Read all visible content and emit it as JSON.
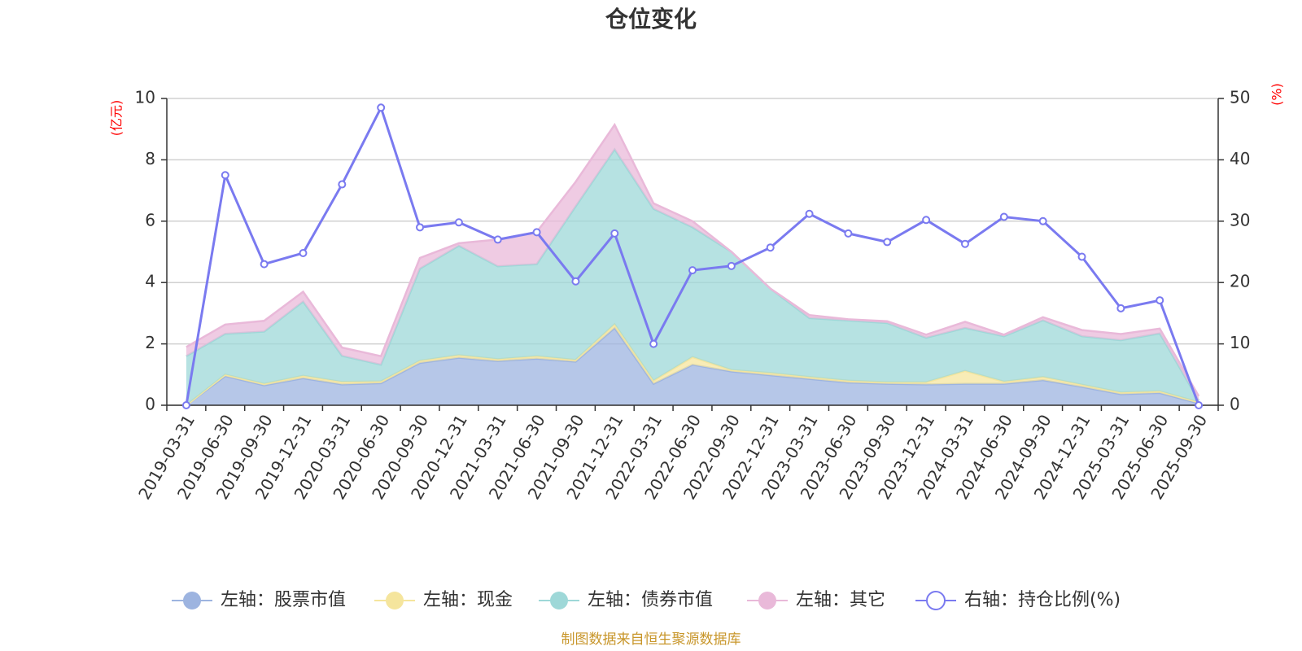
{
  "chart_data": {
    "type": "area",
    "title": "仓位变化",
    "left_axis_label": "(亿元)",
    "right_axis_label": "(%)",
    "left_ylim": [
      0,
      10
    ],
    "left_ticks": [
      0,
      2,
      4,
      6,
      8,
      10
    ],
    "right_ylim": [
      0,
      50
    ],
    "right_ticks": [
      0,
      10,
      20,
      30,
      40,
      50
    ],
    "categories": [
      "2019-03-31",
      "2019-06-30",
      "2019-09-30",
      "2019-12-31",
      "2020-03-31",
      "2020-06-30",
      "2020-09-30",
      "2020-12-31",
      "2021-03-31",
      "2021-06-30",
      "2021-09-30",
      "2021-12-31",
      "2022-03-31",
      "2022-06-30",
      "2022-09-30",
      "2022-12-31",
      "2023-03-31",
      "2023-06-30",
      "2023-09-30",
      "2023-12-31",
      "2024-03-31",
      "2024-06-30",
      "2024-09-30",
      "2024-12-31",
      "2025-03-31",
      "2025-06-30",
      "2025-09-30"
    ],
    "series": [
      {
        "name": "左轴：股票市值",
        "axis": "left",
        "kind": "stacked-area",
        "color": "#9db4e0",
        "values": [
          0.0,
          0.95,
          0.65,
          0.88,
          0.68,
          0.72,
          1.38,
          1.55,
          1.44,
          1.52,
          1.42,
          2.52,
          0.7,
          1.32,
          1.1,
          0.98,
          0.86,
          0.74,
          0.7,
          0.68,
          0.7,
          0.7,
          0.82,
          0.6,
          0.36,
          0.4,
          0.06
        ]
      },
      {
        "name": "左轴：现金",
        "axis": "left",
        "kind": "stacked-area",
        "color": "#f5e59d",
        "values": [
          0.0,
          0.05,
          0.05,
          0.08,
          0.08,
          0.06,
          0.07,
          0.08,
          0.06,
          0.08,
          0.06,
          0.12,
          0.1,
          0.25,
          0.05,
          0.07,
          0.06,
          0.06,
          0.05,
          0.07,
          0.42,
          0.07,
          0.1,
          0.07,
          0.06,
          0.06,
          0.04
        ]
      },
      {
        "name": "左轴：债券市值",
        "axis": "left",
        "kind": "stacked-area",
        "color": "#9ed8d8",
        "values": [
          1.6,
          1.33,
          1.7,
          2.42,
          0.85,
          0.54,
          3.0,
          3.57,
          3.03,
          3.0,
          5.0,
          5.7,
          5.6,
          4.23,
          3.85,
          2.75,
          1.92,
          1.96,
          1.93,
          1.45,
          1.4,
          1.48,
          1.85,
          1.58,
          1.7,
          1.88,
          0.05
        ]
      },
      {
        "name": "左轴：其它",
        "axis": "left",
        "kind": "stacked-area",
        "color": "#e9b9d9",
        "values": [
          0.3,
          0.3,
          0.35,
          0.32,
          0.27,
          0.28,
          0.35,
          0.08,
          0.87,
          1.05,
          0.8,
          0.8,
          0.18,
          0.2,
          0.0,
          0.0,
          0.1,
          0.04,
          0.06,
          0.1,
          0.2,
          0.05,
          0.1,
          0.2,
          0.2,
          0.16,
          0.15
        ]
      },
      {
        "name": "右轴：持仓比例(%)",
        "axis": "right",
        "kind": "line",
        "color": "#7a7af0",
        "values": [
          0.0,
          37.5,
          23.0,
          24.8,
          36.0,
          48.5,
          29.0,
          29.8,
          27.0,
          28.2,
          20.2,
          28.0,
          10.0,
          22.0,
          22.7,
          25.7,
          31.2,
          28.0,
          26.6,
          30.2,
          26.3,
          30.7,
          30.0,
          24.2,
          15.8,
          17.1,
          0.0
        ]
      }
    ],
    "footer": "制图数据来自恒生聚源数据库"
  }
}
